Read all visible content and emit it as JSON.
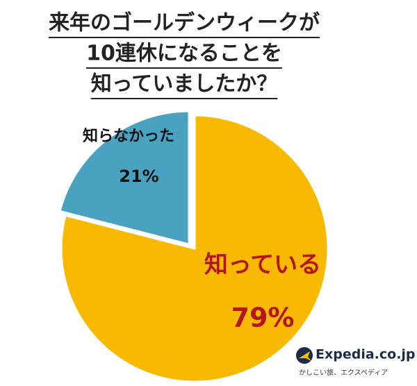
{
  "chart_data": {
    "type": "pie",
    "title": [
      "来年のゴールデンウィークが",
      "10連休になることを",
      "知っていましたか？"
    ],
    "categories": [
      "知っている",
      "知らなかった"
    ],
    "values": [
      79,
      21
    ],
    "value_labels": [
      "79%",
      "21%"
    ],
    "colors": [
      "#f9b900",
      "#4aa2c1"
    ],
    "label_colors": [
      "#b3161c",
      "#111111"
    ],
    "annotations": [
      "Expedia.co.jp",
      "かしこい旅、エクスペディア"
    ]
  }
}
